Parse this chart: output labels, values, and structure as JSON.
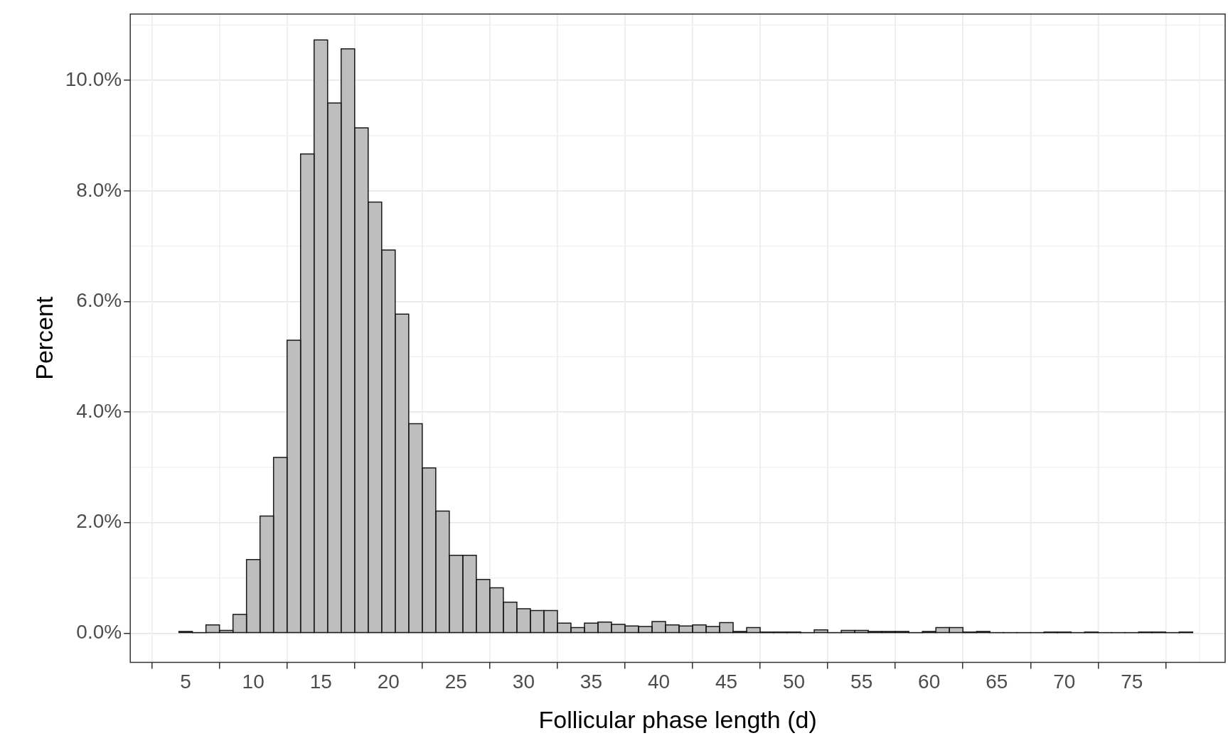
{
  "chart_data": {
    "type": "histogram",
    "xlabel": "Follicular phase length (d)",
    "ylabel": "Percent",
    "bins": [
      4.5,
      5.5,
      6.5,
      7.5,
      8.5,
      9.5,
      10.5,
      11.5,
      12.5,
      13.5,
      14.5,
      15.5,
      16.5,
      17.5,
      18.5,
      19.5,
      20.5,
      21.5,
      22.5,
      23.5,
      24.5,
      25.5,
      26.5,
      27.5,
      28.5,
      29.5,
      30.5,
      31.5,
      32.5,
      33.5,
      34.5,
      35.5,
      36.5,
      37.5,
      38.5,
      39.5,
      40.5,
      41.5,
      42.5,
      43.5,
      44.5,
      45.5,
      46.5,
      47.5,
      48.5,
      49.5,
      50.5,
      51.5,
      52.5,
      53.5,
      54.5,
      55.5,
      56.5,
      57.5,
      58.5,
      59.5,
      60.5,
      61.5,
      62.5,
      63.5,
      64.5,
      65.5,
      66.5,
      67.5,
      68.5,
      69.5,
      70.5,
      71.5,
      72.5,
      73.5,
      74.5,
      75.5,
      76.5,
      77.5,
      78.5,
      79.5
    ],
    "values": [
      0.03,
      0.01,
      0.15,
      0.05,
      0.34,
      1.33,
      2.12,
      3.18,
      5.3,
      8.67,
      10.73,
      9.59,
      10.57,
      9.14,
      7.8,
      6.93,
      5.77,
      3.79,
      2.99,
      2.21,
      1.41,
      1.41,
      0.97,
      0.82,
      0.56,
      0.44,
      0.41,
      0.41,
      0.18,
      0.1,
      0.18,
      0.2,
      0.16,
      0.13,
      0.12,
      0.21,
      0.15,
      0.13,
      0.15,
      0.12,
      0.19,
      0.03,
      0.1,
      0.02,
      0.02,
      0.02,
      0.01,
      0.06,
      0.01,
      0.05,
      0.05,
      0.03,
      0.03,
      0.03,
      0.01,
      0.03,
      0.1,
      0.1,
      0.02,
      0.03,
      0.01,
      0.01,
      0.01,
      0.01,
      0.02,
      0.02,
      0.01,
      0.02,
      0.01,
      0.01,
      0.01,
      0.02,
      0.02,
      0.01,
      0.02
    ],
    "color": "#bebebe",
    "xlim": [
      0.9,
      81.9
    ],
    "xticks": [
      5,
      10,
      15,
      20,
      25,
      30,
      35,
      40,
      45,
      50,
      55,
      60,
      65,
      70,
      75
    ],
    "ylim": [
      -0.53,
      11.2
    ],
    "yticks": [
      {
        "value": 0,
        "label": "0.0%"
      },
      {
        "value": 2,
        "label": "2.0%"
      },
      {
        "value": 4,
        "label": "4.0%"
      },
      {
        "value": 6,
        "label": "6.0%"
      },
      {
        "value": 8,
        "label": "8.0%"
      },
      {
        "value": 10,
        "label": "10.0%"
      }
    ],
    "grid": true
  }
}
